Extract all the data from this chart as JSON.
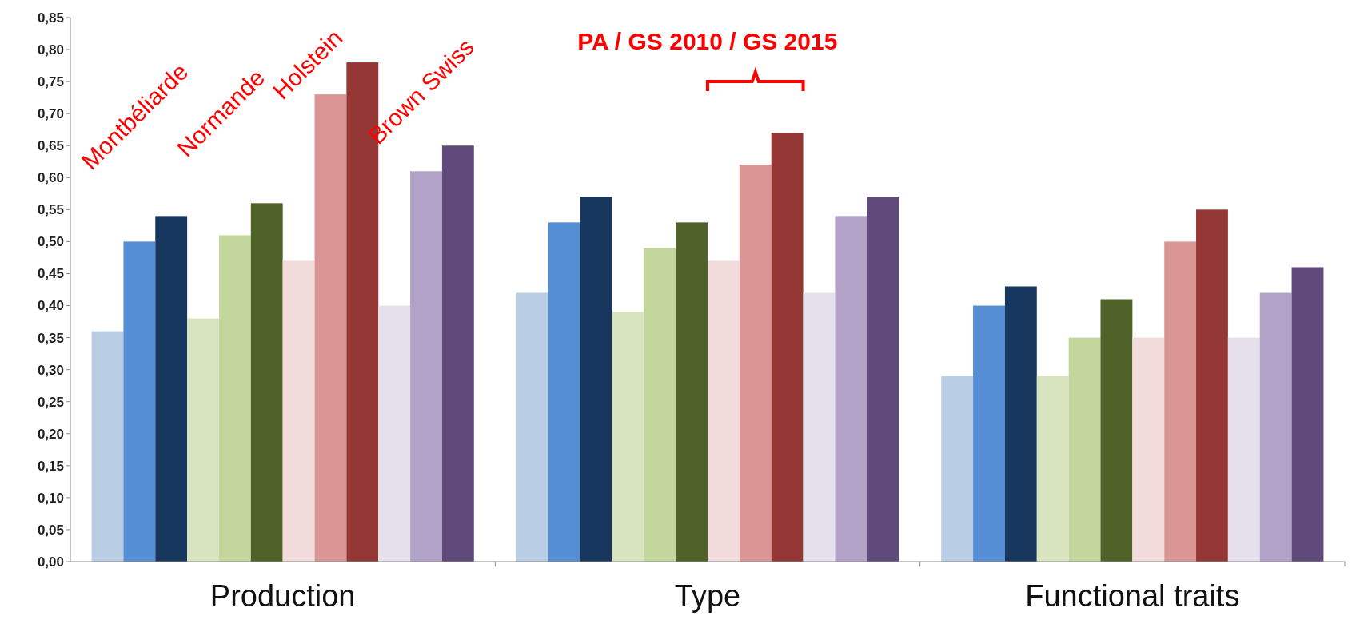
{
  "chart_data": {
    "type": "bar",
    "categories": [
      "Production",
      "Type",
      "Functional traits"
    ],
    "series": [
      {
        "color": "#b9cde5",
        "values": [
          0.36,
          0.42,
          0.29
        ]
      },
      {
        "color": "#558ed5",
        "values": [
          0.5,
          0.53,
          0.4
        ]
      },
      {
        "color": "#17375e",
        "values": [
          0.54,
          0.57,
          0.43
        ]
      },
      {
        "color": "#d7e4bd",
        "values": [
          0.38,
          0.39,
          0.29
        ]
      },
      {
        "color": "#c3d69b",
        "values": [
          0.51,
          0.49,
          0.35
        ]
      },
      {
        "color": "#4f6228",
        "values": [
          0.56,
          0.53,
          0.41
        ]
      },
      {
        "color": "#f2dcdb",
        "values": [
          0.47,
          0.47,
          0.35
        ]
      },
      {
        "color": "#d99694",
        "values": [
          0.73,
          0.62,
          0.5
        ]
      },
      {
        "color": "#953735",
        "values": [
          0.78,
          0.67,
          0.55
        ]
      },
      {
        "color": "#e6e0ec",
        "values": [
          0.4,
          0.42,
          0.35
        ]
      },
      {
        "color": "#b3a2c7",
        "values": [
          0.61,
          0.54,
          0.42
        ]
      },
      {
        "color": "#604a7b",
        "values": [
          0.65,
          0.57,
          0.46
        ]
      }
    ],
    "ylim": [
      0,
      0.85
    ],
    "yticks": [
      {
        "value": 0,
        "label": "0,00"
      },
      {
        "value": 0.05,
        "label": "0,05"
      },
      {
        "value": 0.1,
        "label": "0,10"
      },
      {
        "value": 0.15,
        "label": "0,15"
      },
      {
        "value": 0.2,
        "label": "0,20"
      },
      {
        "value": 0.25,
        "label": "0,25"
      },
      {
        "value": 0.3,
        "label": "0,30"
      },
      {
        "value": 0.35,
        "label": "0,35"
      },
      {
        "value": 0.4,
        "label": "0,40"
      },
      {
        "value": 0.45,
        "label": "0,45"
      },
      {
        "value": 0.5,
        "label": "0,50"
      },
      {
        "value": 0.55,
        "label": "0,55"
      },
      {
        "value": 0.6,
        "label": "0,60"
      },
      {
        "value": 0.65,
        "label": "0,65"
      },
      {
        "value": 0.7,
        "label": "0,70"
      },
      {
        "value": 0.75,
        "label": "0,75"
      },
      {
        "value": 0.8,
        "label": "0,80"
      },
      {
        "value": 0.85,
        "label": "0,85"
      }
    ],
    "annotations": [
      "Montbéliarde",
      "Normande",
      "Holstein",
      "Brown Swiss",
      "PA / GS 2010 / GS 2015"
    ],
    "grid": false
  }
}
